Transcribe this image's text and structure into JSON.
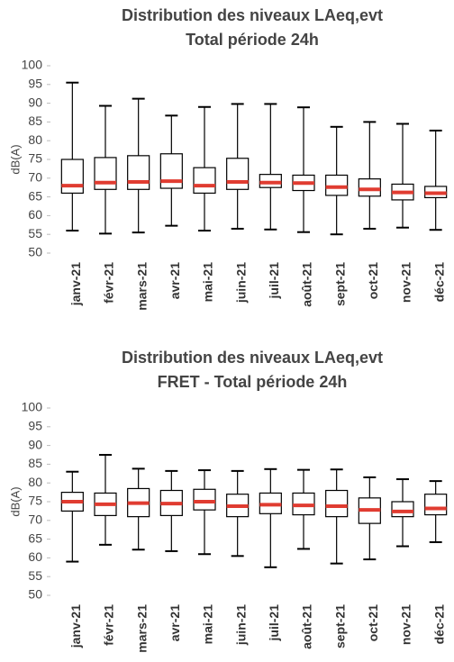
{
  "chart_data": [
    {
      "type": "box",
      "title": [
        "Distribution des niveaux LAeq,evt",
        "Total période 24h"
      ],
      "y_label": "dB(A)",
      "categories": [
        "janv-21",
        "févr-21",
        "mars-21",
        "avr-21",
        "mai-21",
        "juin-21",
        "juil-21",
        "août-21",
        "sept-21",
        "oct-21",
        "nov-21",
        "déc-21"
      ],
      "min": [
        56,
        55.2,
        55.5,
        57.3,
        56,
        56.5,
        56.3,
        55.6,
        55,
        56.5,
        56.8,
        56.2
      ],
      "q1": [
        66,
        67,
        67,
        67.3,
        66,
        67,
        67.5,
        66.7,
        65.4,
        65.2,
        64.2,
        64.8
      ],
      "median": [
        68,
        68.8,
        69,
        69.2,
        68,
        69,
        68.8,
        68.7,
        67.6,
        67,
        66.2,
        66
      ],
      "q3": [
        75,
        75.5,
        76,
        76.5,
        72.8,
        75.3,
        71,
        70.8,
        70.8,
        69.8,
        68.4,
        67.8
      ],
      "max": [
        95.5,
        89.3,
        91.2,
        86.7,
        89,
        89.8,
        89.8,
        88.9,
        83.7,
        85,
        84.5,
        82.7
      ],
      "box_color": "#000000",
      "median_color": "#e03c31",
      "ylim": [
        50,
        100
      ],
      "yticks": [
        50,
        55,
        60,
        65,
        70,
        75,
        80,
        85,
        90,
        95,
        100
      ]
    },
    {
      "type": "box",
      "title": [
        "Distribution des niveaux LAeq,evt",
        "FRET - Total période 24h"
      ],
      "y_label": "dB(A)",
      "categories": [
        "janv-21",
        "févr-21",
        "mars-21",
        "avr-21",
        "mai-21",
        "juin-21",
        "juil-21",
        "août-21",
        "sept-21",
        "oct-21",
        "nov-21",
        "déc-21"
      ],
      "min": [
        59,
        63.5,
        62.2,
        61.8,
        61,
        60.5,
        57.5,
        62.4,
        58.5,
        59.6,
        63.1,
        64.2
      ],
      "q1": [
        72.5,
        71.3,
        71,
        71.3,
        72.8,
        71,
        71.8,
        71.5,
        71,
        69.2,
        71,
        71.5
      ],
      "median": [
        75,
        74.3,
        74.6,
        74.5,
        75,
        73.8,
        74.2,
        74,
        73.8,
        72.8,
        72.4,
        73.2
      ],
      "q3": [
        77.5,
        77.3,
        78.5,
        78,
        78.3,
        77,
        77.3,
        77.3,
        78,
        76,
        75,
        77
      ],
      "max": [
        83,
        87.5,
        83.8,
        83.2,
        83.4,
        83.2,
        83.7,
        83.5,
        83.6,
        81.5,
        81,
        80.5
      ],
      "box_color": "#000000",
      "median_color": "#e03c31",
      "ylim": [
        50,
        100
      ],
      "yticks": [
        50,
        55,
        60,
        65,
        70,
        75,
        80,
        85,
        90,
        95,
        100
      ]
    }
  ]
}
